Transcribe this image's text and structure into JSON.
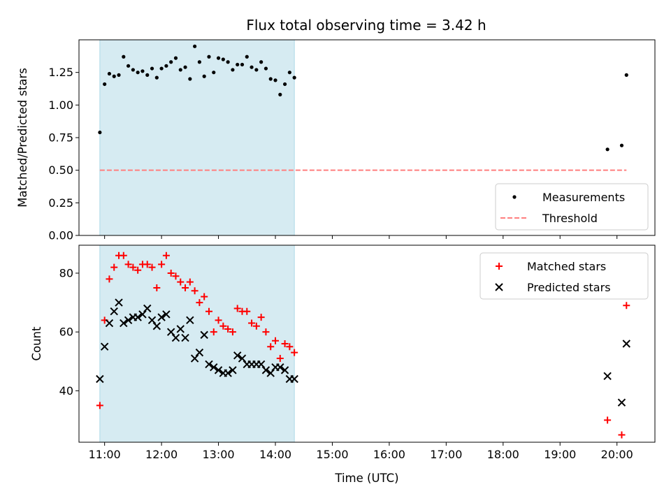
{
  "chart_data": [
    {
      "type": "scatter",
      "title": "Flux total observing time = 3.42 h",
      "xlabel": "",
      "ylabel": "Matched/Predicted stars",
      "xlim": [
        "10:33",
        "20:40"
      ],
      "ylim": [
        0,
        1.5
      ],
      "yticks": [
        0.0,
        0.25,
        0.5,
        0.75,
        1.0,
        1.25
      ],
      "ytick_labels": [
        "0.00",
        "0.25",
        "0.50",
        "0.75",
        "1.00",
        "1.25"
      ],
      "shaded_interval": {
        "start": "10:55",
        "end": "14:20",
        "color": "#add8e6"
      },
      "legend": {
        "placement": "lower-right",
        "entries": [
          "Measurements",
          "Threshold"
        ]
      },
      "series": [
        {
          "name": "Measurements",
          "marker": "dot",
          "color": "#000000",
          "x": [
            "10:55",
            "11:00",
            "11:05",
            "11:10",
            "11:15",
            "11:20",
            "11:25",
            "11:30",
            "11:35",
            "11:40",
            "11:45",
            "11:50",
            "11:55",
            "12:00",
            "12:05",
            "12:10",
            "12:15",
            "12:20",
            "12:25",
            "12:30",
            "12:35",
            "12:40",
            "12:45",
            "12:50",
            "12:55",
            "13:00",
            "13:05",
            "13:10",
            "13:15",
            "13:20",
            "13:25",
            "13:30",
            "13:35",
            "13:40",
            "13:45",
            "13:50",
            "13:55",
            "14:00",
            "14:05",
            "14:10",
            "14:15",
            "14:20",
            "19:50",
            "20:05",
            "20:10"
          ],
          "y": [
            0.79,
            1.16,
            1.24,
            1.22,
            1.23,
            1.37,
            1.3,
            1.27,
            1.25,
            1.26,
            1.23,
            1.28,
            1.21,
            1.28,
            1.3,
            1.33,
            1.36,
            1.27,
            1.29,
            1.2,
            1.45,
            1.33,
            1.22,
            1.37,
            1.25,
            1.36,
            1.35,
            1.33,
            1.27,
            1.31,
            1.31,
            1.37,
            1.29,
            1.27,
            1.33,
            1.28,
            1.2,
            1.19,
            1.08,
            1.16,
            1.25,
            1.21,
            0.66,
            0.69,
            1.23
          ]
        },
        {
          "name": "Threshold",
          "marker": "dashed-line",
          "color": "#ff7f7f",
          "x": [
            "10:55",
            "20:10"
          ],
          "y": [
            0.5,
            0.5
          ]
        }
      ]
    },
    {
      "type": "scatter",
      "title": "",
      "xlabel": "Time (UTC)",
      "ylabel": "Count",
      "xlim": [
        "10:33",
        "20:40"
      ],
      "xticks": [
        "11:00",
        "12:00",
        "13:00",
        "14:00",
        "15:00",
        "16:00",
        "17:00",
        "18:00",
        "19:00",
        "20:00"
      ],
      "ylim": [
        22.5,
        89.5
      ],
      "yticks": [
        40,
        60,
        80
      ],
      "ytick_labels": [
        "40",
        "60",
        "80"
      ],
      "shaded_interval": {
        "start": "10:55",
        "end": "14:20",
        "color": "#add8e6"
      },
      "legend": {
        "placement": "top-right",
        "entries": [
          "Matched stars",
          "Predicted stars"
        ]
      },
      "series": [
        {
          "name": "Matched stars",
          "marker": "plus",
          "color": "#ff0000",
          "x": [
            "10:55",
            "11:00",
            "11:05",
            "11:10",
            "11:15",
            "11:20",
            "11:25",
            "11:30",
            "11:35",
            "11:40",
            "11:45",
            "11:50",
            "11:55",
            "12:00",
            "12:05",
            "12:10",
            "12:15",
            "12:20",
            "12:25",
            "12:30",
            "12:35",
            "12:40",
            "12:45",
            "12:50",
            "12:55",
            "13:00",
            "13:05",
            "13:10",
            "13:15",
            "13:20",
            "13:25",
            "13:30",
            "13:35",
            "13:40",
            "13:45",
            "13:50",
            "13:55",
            "14:00",
            "14:05",
            "14:10",
            "14:15",
            "14:20",
            "19:50",
            "20:05",
            "20:10"
          ],
          "y": [
            35,
            64,
            78,
            82,
            86,
            86,
            83,
            82,
            81,
            83,
            83,
            82,
            75,
            83,
            86,
            80,
            79,
            77,
            75,
            77,
            74,
            70,
            72,
            67,
            60,
            64,
            62,
            61,
            60,
            68,
            67,
            67,
            63,
            62,
            65,
            60,
            55,
            57,
            51,
            56,
            55,
            53,
            30,
            25,
            69
          ]
        },
        {
          "name": "Predicted stars",
          "marker": "x",
          "color": "#000000",
          "x": [
            "10:55",
            "11:00",
            "11:05",
            "11:10",
            "11:15",
            "11:20",
            "11:25",
            "11:30",
            "11:35",
            "11:40",
            "11:45",
            "11:50",
            "11:55",
            "12:00",
            "12:05",
            "12:10",
            "12:15",
            "12:20",
            "12:25",
            "12:30",
            "12:35",
            "12:40",
            "12:45",
            "12:50",
            "12:55",
            "13:00",
            "13:05",
            "13:10",
            "13:15",
            "13:20",
            "13:25",
            "13:30",
            "13:35",
            "13:40",
            "13:45",
            "13:50",
            "13:55",
            "14:00",
            "14:05",
            "14:10",
            "14:15",
            "14:20",
            "19:50",
            "20:05",
            "20:10"
          ],
          "y": [
            44,
            55,
            63,
            67,
            70,
            63,
            64,
            65,
            65,
            66,
            68,
            64,
            62,
            65,
            66,
            60,
            58,
            61,
            58,
            64,
            51,
            53,
            59,
            49,
            48,
            47,
            46,
            46,
            47,
            52,
            51,
            49,
            49,
            49,
            49,
            47,
            46,
            48,
            48,
            47,
            44,
            44,
            45,
            36,
            56
          ]
        }
      ]
    }
  ]
}
